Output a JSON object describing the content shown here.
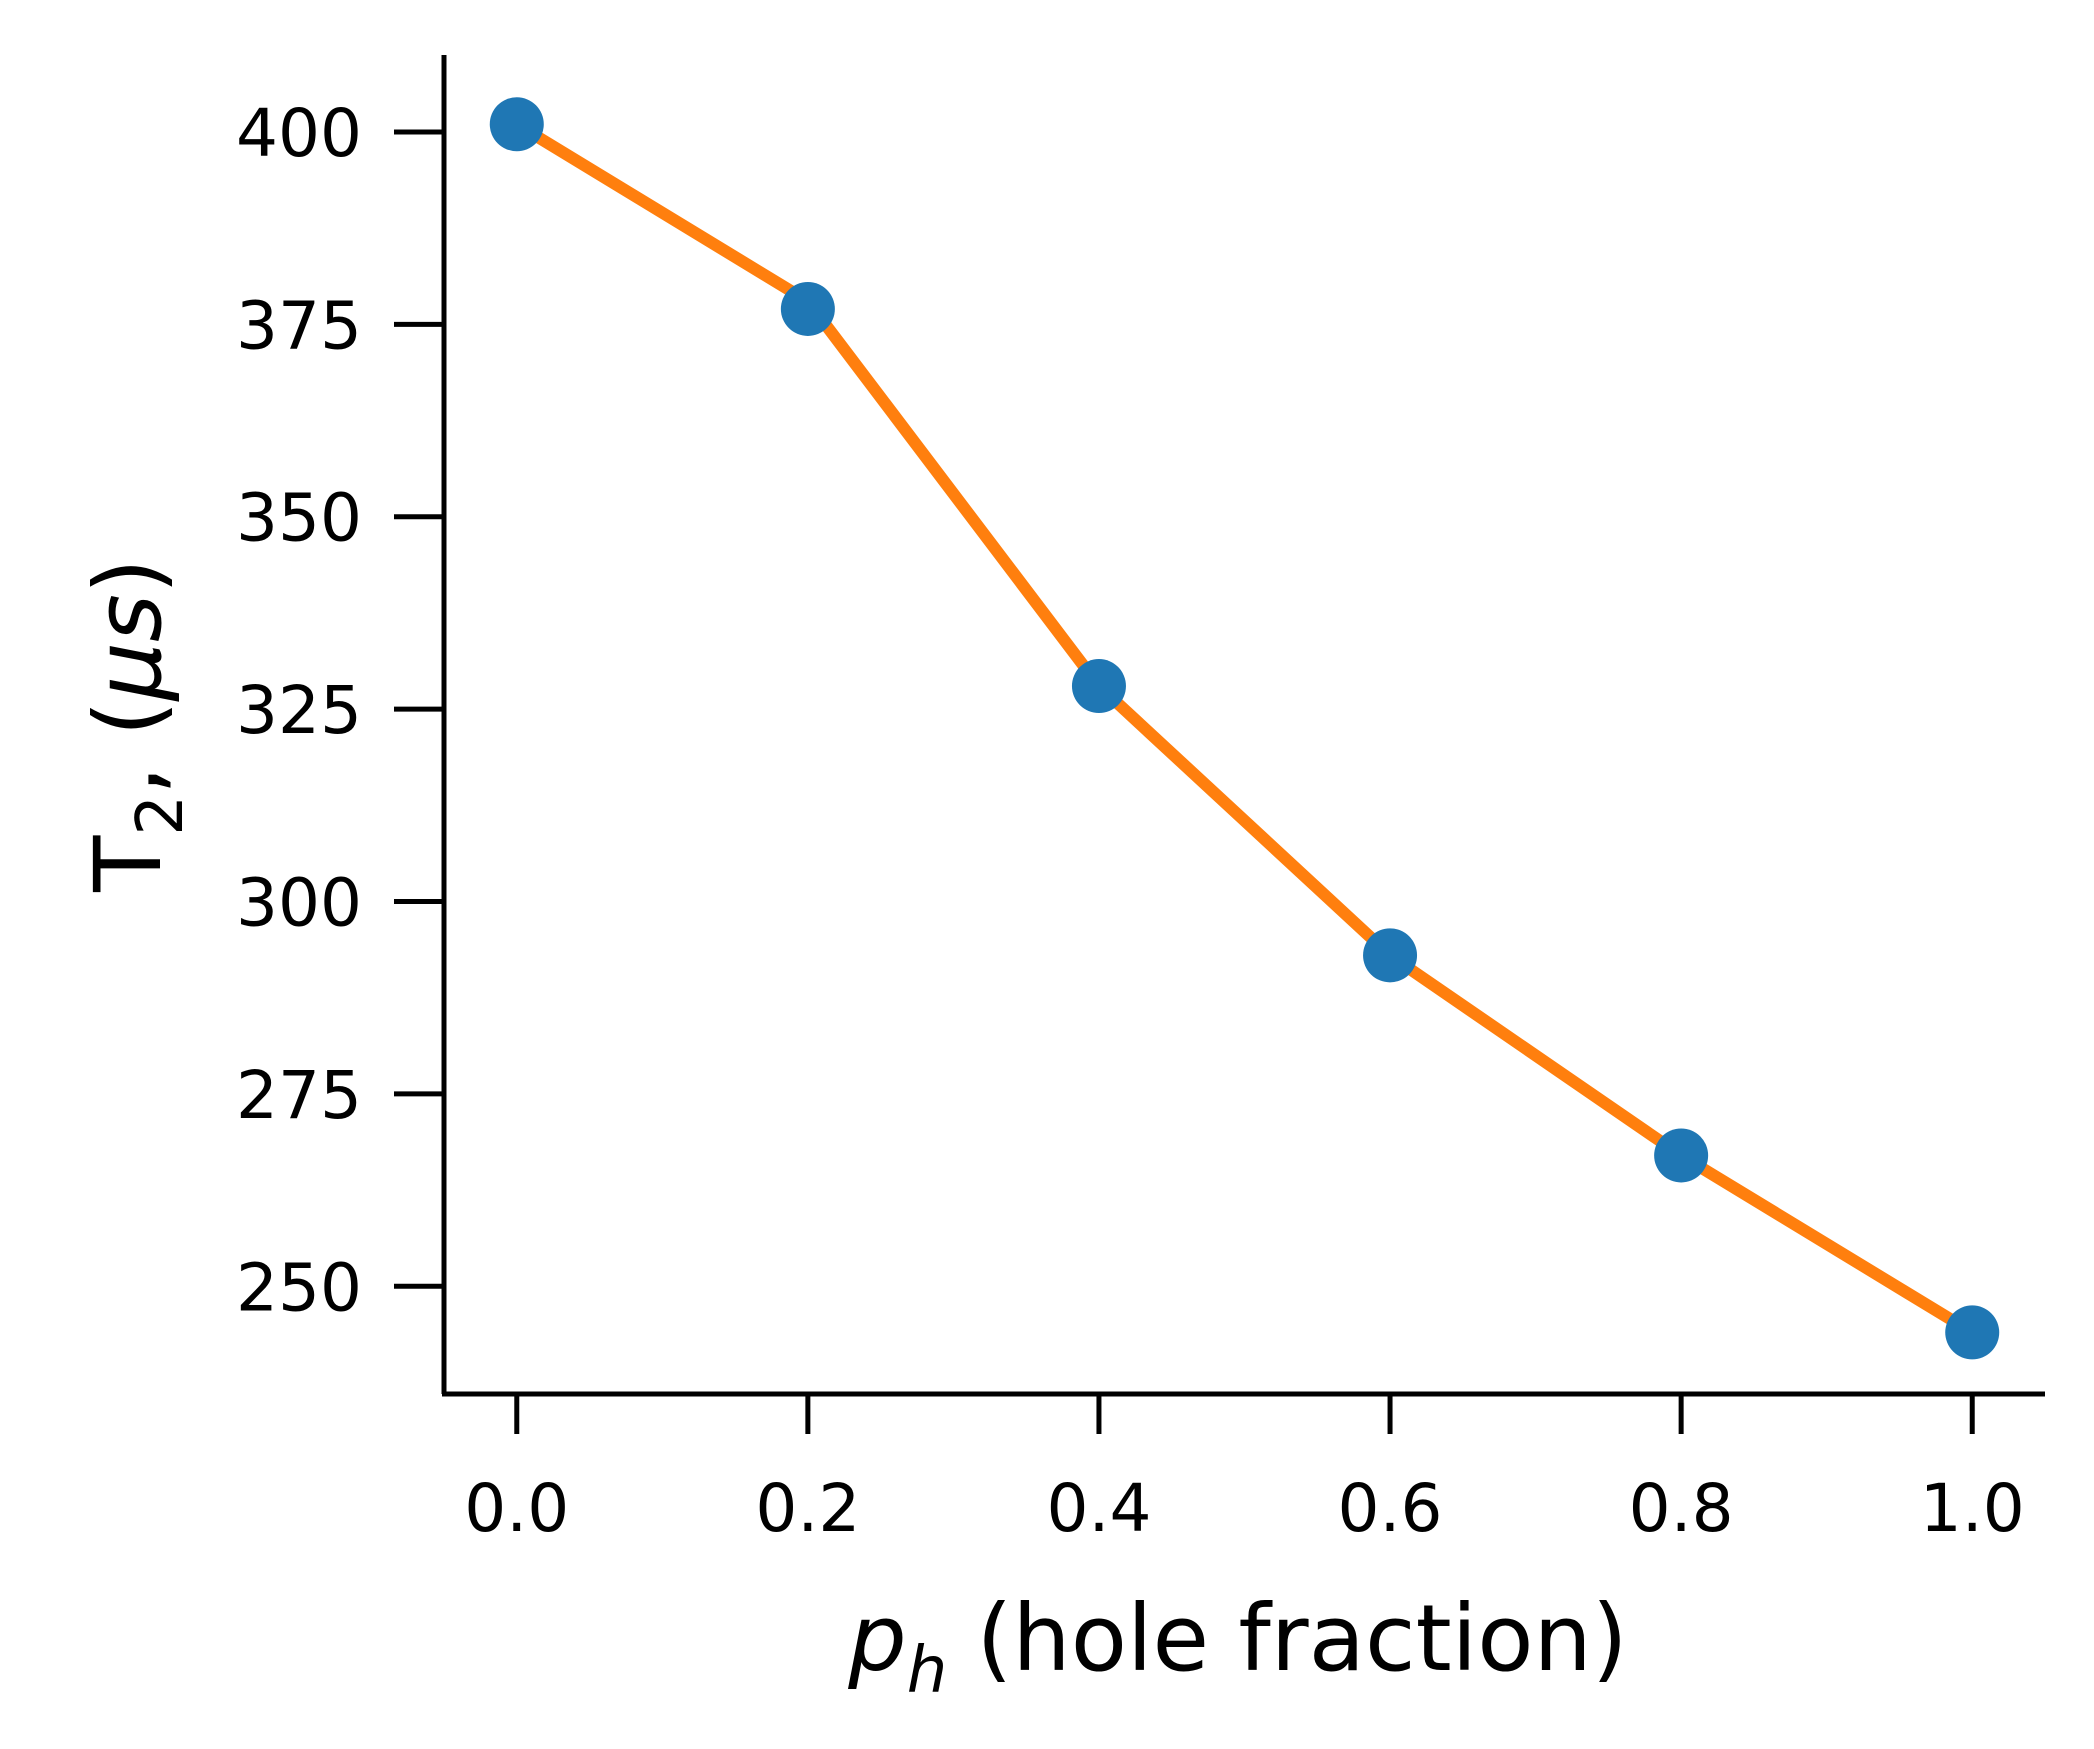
{
  "chart_data": {
    "type": "line",
    "x": [
      0.0,
      0.2,
      0.4,
      0.6,
      0.8,
      1.0
    ],
    "series": [
      {
        "kind": "scatter",
        "color": "#1f77b4",
        "values": [
          401,
          377,
          328,
          293,
          267,
          244
        ]
      },
      {
        "kind": "line",
        "color": "#ff7f0e",
        "values": [
          401,
          378,
          328,
          293,
          267,
          244
        ]
      }
    ],
    "xlabel": {
      "var": "p",
      "sub": "h",
      "rest": " (hole fraction)"
    },
    "ylabel": {
      "main": "T",
      "sub": "2",
      "rest": ",  (",
      "unit": "μs",
      "close": ")"
    },
    "xticks": [
      "0.0",
      "0.2",
      "0.4",
      "0.6",
      "0.8",
      "1.0"
    ],
    "yticks": [
      "250",
      "275",
      "300",
      "325",
      "350",
      "375",
      "400"
    ],
    "xlim": [
      -0.05,
      1.05
    ],
    "ylim": [
      236,
      410
    ],
    "grid": false,
    "spines": "left-bottom"
  }
}
